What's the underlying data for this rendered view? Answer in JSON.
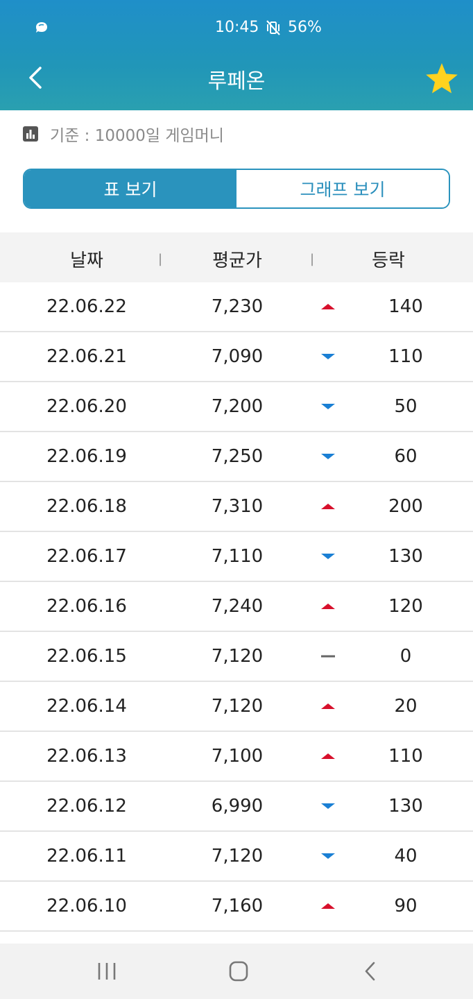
{
  "status_bar": {
    "time": "10:45",
    "battery": "56%",
    "icons": [
      "chat-bubble-icon",
      "mute-vibrate-icon"
    ]
  },
  "header": {
    "title": "루페온",
    "back_icon": "chevron-left-icon",
    "favorite_icon": "star-icon",
    "favorite_color": "#FFD21F"
  },
  "basis": {
    "icon": "bar-chart-icon",
    "text": "기준 : 10000일 게임머니"
  },
  "view_toggle": {
    "table_label": "표 보기",
    "graph_label": "그래프 보기",
    "selected": "표 보기"
  },
  "table": {
    "columns": [
      "날짜",
      "평균가",
      "등락"
    ],
    "separator": "|",
    "rows": [
      {
        "date": "22.06.22",
        "avg": "7,230",
        "direction": "up",
        "change": "140"
      },
      {
        "date": "22.06.21",
        "avg": "7,090",
        "direction": "down",
        "change": "110"
      },
      {
        "date": "22.06.20",
        "avg": "7,200",
        "direction": "down",
        "change": "50"
      },
      {
        "date": "22.06.19",
        "avg": "7,250",
        "direction": "down",
        "change": "60"
      },
      {
        "date": "22.06.18",
        "avg": "7,310",
        "direction": "up",
        "change": "200"
      },
      {
        "date": "22.06.17",
        "avg": "7,110",
        "direction": "down",
        "change": "130"
      },
      {
        "date": "22.06.16",
        "avg": "7,240",
        "direction": "up",
        "change": "120"
      },
      {
        "date": "22.06.15",
        "avg": "7,120",
        "direction": "flat",
        "change": "0"
      },
      {
        "date": "22.06.14",
        "avg": "7,120",
        "direction": "up",
        "change": "20"
      },
      {
        "date": "22.06.13",
        "avg": "7,100",
        "direction": "up",
        "change": "110"
      },
      {
        "date": "22.06.12",
        "avg": "6,990",
        "direction": "down",
        "change": "130"
      },
      {
        "date": "22.06.11",
        "avg": "7,120",
        "direction": "down",
        "change": "40"
      },
      {
        "date": "22.06.10",
        "avg": "7,160",
        "direction": "up",
        "change": "90"
      }
    ]
  },
  "colors": {
    "header": "#1F8FC9",
    "accent": "#2A93BD",
    "up": "#D7102C",
    "down": "#1A7FD4",
    "flat": "#666666"
  },
  "nav_bar": {
    "icons": [
      "recent-apps-icon",
      "home-icon",
      "back-nav-icon"
    ]
  }
}
